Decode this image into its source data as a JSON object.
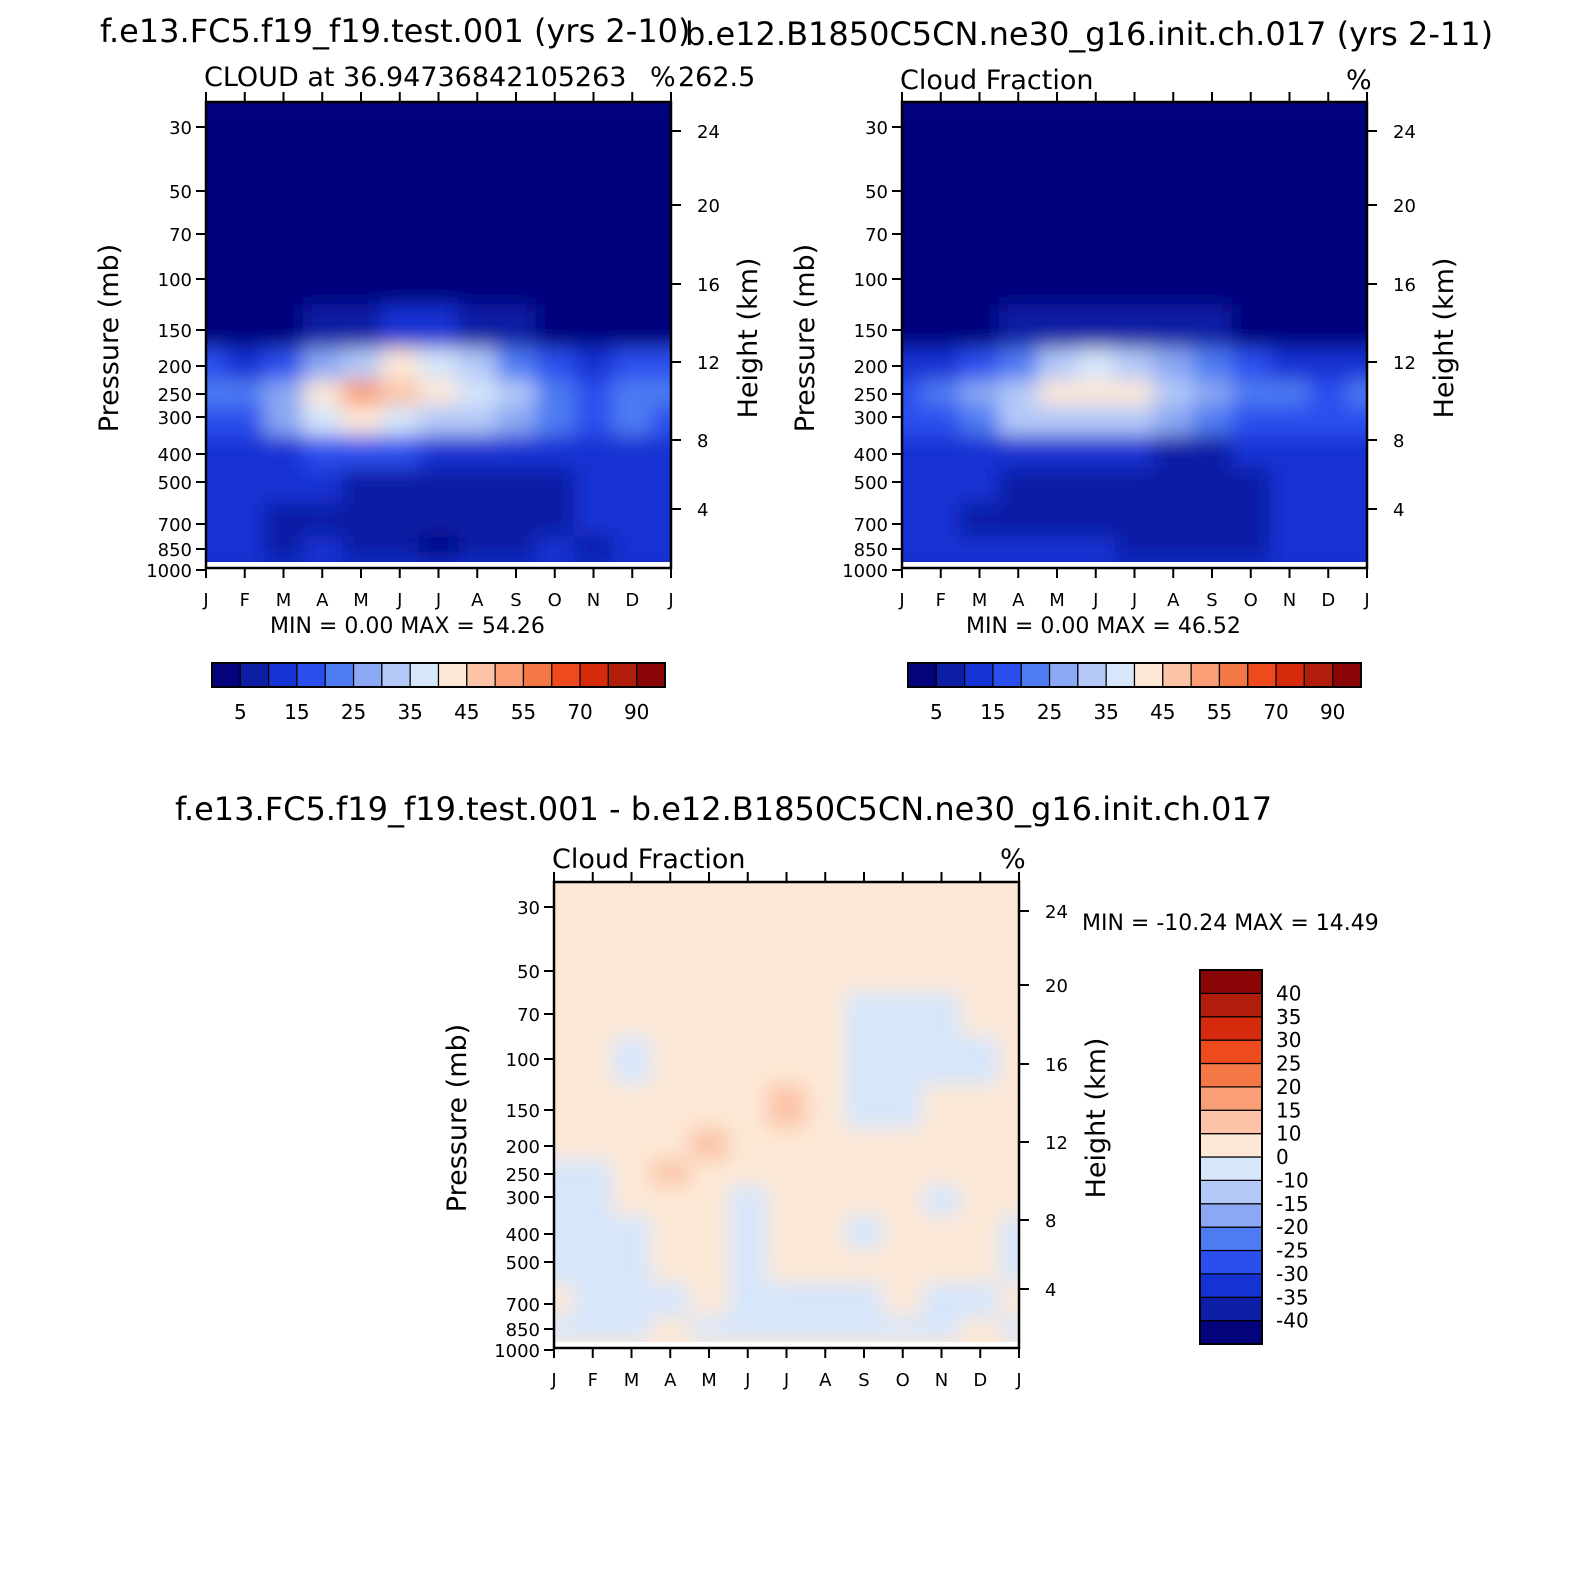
{
  "colors": {
    "scale": [
      "#03037c",
      "#0c1ea4",
      "#1532d3",
      "#2a4fee",
      "#4d7bf2",
      "#8aa8f3",
      "#b4c9f8",
      "#d6e6fb",
      "#fde8d6",
      "#fcc3a6",
      "#f99e76",
      "#f47845",
      "#ef4a1d",
      "#d52a0b",
      "#b01e0b",
      "#8a0505"
    ],
    "diff_scale": [
      "#03037c",
      "#0c1ea4",
      "#1532d3",
      "#2a4fee",
      "#4d7bf2",
      "#8aa8f3",
      "#b4c9f8",
      "#d6e6fb",
      "#fde8d6",
      "#fcc3a6",
      "#f99e76",
      "#f47845",
      "#ef4a1d",
      "#d52a0b",
      "#b01e0b",
      "#8a0505"
    ]
  },
  "panels": {
    "test": {
      "case_title": "f.e13.FC5.f19_f19.test.001 (yrs 2-10)",
      "left_label": "CLOUD at 36.94736842105263",
      "mid_label": "262.5",
      "units": "%",
      "stats": "MIN =    0.00  MAX =    54.26"
    },
    "ctrl": {
      "case_title": "b.e12.B1850C5CN.ne30_g16.init.ch.017 (yrs 2-11)",
      "left_label": "Cloud Fraction",
      "units": "%",
      "stats": "MIN =    0.00  MAX =    46.52"
    },
    "diff": {
      "case_title": "f.e13.FC5.f19_f19.test.001 - b.e12.B1850C5CN.ne30_g16.init.ch.017",
      "left_label": "Cloud Fraction",
      "units": "%",
      "stats": "MIN = -10.24  MAX =    14.49"
    }
  },
  "axes": {
    "ylabel_left": "Pressure (mb)",
    "ylabel_right": "Height (km)",
    "pressure_ticks": [
      "30",
      "50",
      "70",
      "100",
      "150",
      "200",
      "250",
      "300",
      "400",
      "500",
      "700",
      "850",
      "1000"
    ],
    "height_ticks": [
      "24",
      "20",
      "16",
      "12",
      "8",
      "4"
    ],
    "month_ticks": [
      "J",
      "F",
      "M",
      "A",
      "M",
      "J",
      "J",
      "A",
      "S",
      "O",
      "N",
      "D",
      "J"
    ]
  },
  "colorbars": {
    "horizontal_labels": [
      "5",
      "15",
      "25",
      "35",
      "45",
      "55",
      "70",
      "90"
    ],
    "vertical_labels": [
      "40",
      "35",
      "30",
      "25",
      "20",
      "15",
      "10",
      "0",
      "-10",
      "-15",
      "-20",
      "-25",
      "-30",
      "-35",
      "-40"
    ]
  },
  "chart_data": [
    {
      "type": "heatmap",
      "title": "f.e13.FC5.f19_f19.test.001 (yrs 2-10)",
      "subtitle": "CLOUD at 36.94736842105263 262.5 %",
      "xlabel": "",
      "ylabel": "Pressure (mb)",
      "y2label": "Height (km)",
      "x": [
        "J",
        "F",
        "M",
        "A",
        "M",
        "J",
        "J",
        "A",
        "S",
        "O",
        "N",
        "D",
        "J"
      ],
      "y": [
        30,
        50,
        70,
        100,
        150,
        200,
        250,
        300,
        400,
        500,
        700,
        850,
        1000
      ],
      "log_y": true,
      "contour_levels": [
        5,
        10,
        15,
        20,
        25,
        30,
        35,
        40,
        45,
        50,
        55,
        60,
        70,
        80,
        90
      ],
      "min": 0.0,
      "max": 54.26,
      "values": [
        [
          2,
          2,
          2,
          2,
          2,
          2,
          2,
          2,
          2,
          2,
          2,
          2,
          2
        ],
        [
          2,
          2,
          2,
          2,
          2,
          2,
          2,
          2,
          2,
          2,
          2,
          2,
          2
        ],
        [
          2,
          2,
          2,
          2,
          2,
          2,
          2,
          2,
          2,
          2,
          2,
          2,
          2
        ],
        [
          2,
          2,
          2,
          2,
          2,
          2,
          2,
          2,
          2,
          2,
          2,
          2,
          2
        ],
        [
          4,
          3,
          4,
          7,
          9,
          10,
          11,
          9,
          6,
          4,
          3,
          3,
          4
        ],
        [
          16,
          14,
          18,
          25,
          34,
          40,
          38,
          30,
          22,
          16,
          14,
          16,
          16
        ],
        [
          20,
          20,
          28,
          40,
          50,
          48,
          42,
          36,
          30,
          20,
          18,
          22,
          24
        ],
        [
          18,
          18,
          26,
          38,
          44,
          38,
          34,
          32,
          26,
          20,
          18,
          20,
          18
        ],
        [
          12,
          12,
          14,
          18,
          18,
          16,
          14,
          12,
          10,
          12,
          12,
          12,
          12
        ],
        [
          10,
          10,
          10,
          10,
          9,
          9,
          7,
          6,
          6,
          8,
          10,
          10,
          10
        ],
        [
          10,
          12,
          8,
          6,
          5,
          6,
          6,
          6,
          7,
          8,
          10,
          12,
          10
        ],
        [
          14,
          10,
          9,
          12,
          8,
          8,
          4,
          8,
          8,
          10,
          8,
          10,
          14
        ],
        [
          14,
          14,
          14,
          14,
          14,
          14,
          14,
          14,
          14,
          14,
          14,
          14,
          14
        ]
      ]
    },
    {
      "type": "heatmap",
      "title": "b.e12.B1850C5CN.ne30_g16.init.ch.017 (yrs 2-11)",
      "subtitle": "Cloud Fraction %",
      "ylabel": "Pressure (mb)",
      "y2label": "Height (km)",
      "x": [
        "J",
        "F",
        "M",
        "A",
        "M",
        "J",
        "J",
        "A",
        "S",
        "O",
        "N",
        "D",
        "J"
      ],
      "y": [
        30,
        50,
        70,
        100,
        150,
        200,
        250,
        300,
        400,
        500,
        700,
        850,
        1000
      ],
      "log_y": true,
      "contour_levels": [
        5,
        10,
        15,
        20,
        25,
        30,
        35,
        40,
        45,
        50,
        55,
        60,
        70,
        80,
        90
      ],
      "min": 0.0,
      "max": 46.52,
      "values": [
        [
          2,
          2,
          2,
          2,
          2,
          2,
          2,
          2,
          2,
          2,
          2,
          2,
          2
        ],
        [
          2,
          2,
          2,
          2,
          2,
          2,
          2,
          2,
          2,
          2,
          2,
          2,
          2
        ],
        [
          2,
          2,
          2,
          2,
          2,
          2,
          2,
          2,
          2,
          2,
          2,
          2,
          2
        ],
        [
          2,
          2,
          2,
          2,
          2,
          2,
          2,
          2,
          2,
          2,
          2,
          2,
          2
        ],
        [
          3,
          3,
          3,
          5,
          7,
          9,
          8,
          7,
          5,
          4,
          3,
          3,
          3
        ],
        [
          14,
          14,
          16,
          22,
          30,
          36,
          34,
          26,
          20,
          16,
          14,
          14,
          14
        ],
        [
          18,
          20,
          26,
          34,
          40,
          44,
          40,
          34,
          26,
          22,
          20,
          18,
          20
        ],
        [
          16,
          18,
          24,
          30,
          34,
          34,
          30,
          28,
          22,
          18,
          18,
          16,
          16
        ],
        [
          12,
          12,
          14,
          14,
          14,
          12,
          10,
          9,
          9,
          10,
          12,
          12,
          12
        ],
        [
          10,
          10,
          10,
          9,
          8,
          7,
          6,
          6,
          6,
          6,
          10,
          10,
          10
        ],
        [
          12,
          12,
          8,
          9,
          6,
          6,
          6,
          6,
          6,
          6,
          10,
          10,
          10
        ],
        [
          14,
          12,
          12,
          12,
          10,
          10,
          8,
          8,
          8,
          8,
          10,
          10,
          14
        ],
        [
          14,
          14,
          14,
          14,
          14,
          14,
          14,
          14,
          14,
          14,
          14,
          14,
          14
        ]
      ]
    },
    {
      "type": "heatmap",
      "title": "f.e13.FC5.f19_f19.test.001 - b.e12.B1850C5CN.ne30_g16.init.ch.017",
      "subtitle": "Cloud Fraction %",
      "ylabel": "Pressure (mb)",
      "y2label": "Height (km)",
      "x": [
        "J",
        "F",
        "M",
        "A",
        "M",
        "J",
        "J",
        "A",
        "S",
        "O",
        "N",
        "D",
        "J"
      ],
      "y": [
        30,
        50,
        70,
        100,
        150,
        200,
        250,
        300,
        400,
        500,
        700,
        850,
        1000
      ],
      "log_y": true,
      "contour_levels": [
        -40,
        -35,
        -30,
        -25,
        -20,
        -15,
        -10,
        0,
        10,
        15,
        20,
        25,
        30,
        35,
        40
      ],
      "min": -10.24,
      "max": 14.49,
      "values": [
        [
          0.3,
          0.3,
          0.3,
          0.3,
          0.3,
          0.3,
          0.3,
          0.3,
          0.3,
          0.3,
          0.3,
          0.3,
          0.3
        ],
        [
          0.3,
          0.3,
          0.3,
          0.3,
          0.3,
          0.3,
          0.3,
          0.3,
          0.3,
          0.3,
          0.3,
          0.3,
          0.3
        ],
        [
          0.3,
          0.3,
          0.3,
          0.3,
          0.3,
          0.3,
          0.3,
          0.3,
          -0.5,
          -0.5,
          -0.5,
          0.3,
          0.3
        ],
        [
          0.3,
          0.3,
          -0.5,
          0.3,
          0.3,
          0.3,
          0.3,
          0.3,
          -0.5,
          -0.5,
          -0.5,
          -0.5,
          0.3
        ],
        [
          0.3,
          0.3,
          0.3,
          0.3,
          0.3,
          0.3,
          11,
          0.3,
          -0.5,
          -0.5,
          0.3,
          0.3,
          0.3
        ],
        [
          0.3,
          0.3,
          0.3,
          0.3,
          12,
          0.3,
          0.3,
          0.3,
          0.3,
          0.3,
          0.3,
          0.3,
          0.3
        ],
        [
          -0.5,
          -0.5,
          0.3,
          13,
          0.3,
          0.3,
          0.3,
          0.3,
          0.3,
          0.3,
          0.3,
          0.3,
          0.3
        ],
        [
          -0.5,
          -0.5,
          0.3,
          0.3,
          0.3,
          -0.5,
          0.3,
          0.3,
          0.3,
          0.3,
          -0.5,
          0.3,
          0.3
        ],
        [
          -0.5,
          -0.5,
          -0.5,
          0.3,
          0.3,
          -0.5,
          0.3,
          0.3,
          -0.5,
          0.3,
          0.3,
          0.3,
          -0.5
        ],
        [
          -0.5,
          -0.5,
          -0.5,
          0.3,
          0.3,
          -0.5,
          0.3,
          0.3,
          0.3,
          0.3,
          0.3,
          0.3,
          -0.5
        ],
        [
          0.3,
          -0.5,
          -0.5,
          -0.5,
          0.3,
          -0.5,
          -0.5,
          -0.5,
          -0.5,
          0.3,
          -0.5,
          -0.5,
          0.3
        ],
        [
          -0.5,
          -0.5,
          -0.5,
          0.3,
          -0.5,
          -0.5,
          -0.5,
          -0.5,
          -0.5,
          -0.5,
          -0.5,
          0.3,
          -0.5
        ],
        [
          0.3,
          0.3,
          0.3,
          0.3,
          0.3,
          0.3,
          0.3,
          0.3,
          0.3,
          0.3,
          0.3,
          0.3,
          0.3
        ]
      ]
    }
  ]
}
